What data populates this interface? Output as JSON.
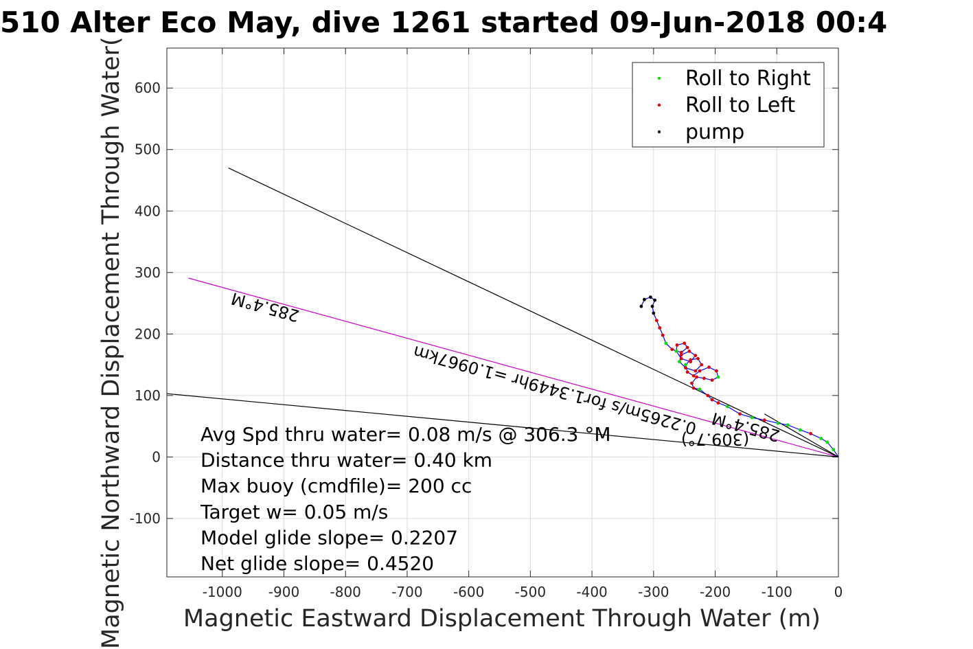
{
  "chart_data": {
    "type": "scatter",
    "title": "510 Alter Eco May, dive 1261 started 09-Jun-2018 00:4",
    "xlabel": "Magnetic Eastward Displacement Through Water (m)",
    "ylabel": "Magnetic Northward Displacement Through Water(",
    "xlim": [
      -1090,
      0
    ],
    "ylim": [
      -195,
      665
    ],
    "xticks": [
      -1000,
      -900,
      -800,
      -700,
      -600,
      -500,
      -400,
      -300,
      -200,
      -100,
      0
    ],
    "yticks": [
      -100,
      0,
      100,
      200,
      300,
      400,
      500,
      600
    ],
    "grid": true,
    "legend_position": "top-right",
    "colors": {
      "roll_right": "#00e000",
      "roll_left": "#e00000",
      "pump": "#000000",
      "track": "#0000ff",
      "heading_line": "#cc00cc",
      "ref_line": "#000000",
      "grid": "#dcdcdc"
    },
    "series": [
      {
        "name": "Roll to Right",
        "color": "#00e000",
        "marker": "dot"
      },
      {
        "name": "Roll to Left",
        "color": "#e00000",
        "marker": "dot"
      },
      {
        "name": "pump",
        "color": "#000000",
        "marker": "dot"
      }
    ],
    "track": {
      "color": "#0000ff",
      "points": [
        [
          0,
          0
        ],
        [
          -8,
          12
        ],
        [
          -18,
          24
        ],
        [
          -28,
          30
        ],
        [
          -45,
          38
        ],
        [
          -62,
          44
        ],
        [
          -82,
          52
        ],
        [
          -98,
          55
        ],
        [
          -120,
          60
        ],
        [
          -140,
          64
        ],
        [
          -160,
          70
        ],
        [
          -180,
          82
        ],
        [
          -195,
          88
        ],
        [
          -205,
          93
        ],
        [
          -212,
          100
        ],
        [
          -225,
          110
        ],
        [
          -235,
          112
        ],
        [
          -238,
          120
        ],
        [
          -230,
          130
        ],
        [
          -218,
          128
        ],
        [
          -205,
          125
        ],
        [
          -195,
          130
        ],
        [
          -198,
          140
        ],
        [
          -210,
          146
        ],
        [
          -225,
          140
        ],
        [
          -235,
          132
        ],
        [
          -245,
          138
        ],
        [
          -248,
          150
        ],
        [
          -240,
          158
        ],
        [
          -228,
          160
        ],
        [
          -222,
          150
        ],
        [
          -232,
          140
        ],
        [
          -248,
          145
        ],
        [
          -258,
          155
        ],
        [
          -255,
          166
        ],
        [
          -242,
          172
        ],
        [
          -232,
          165
        ],
        [
          -240,
          155
        ],
        [
          -255,
          160
        ],
        [
          -263,
          172
        ],
        [
          -262,
          182
        ],
        [
          -250,
          185
        ],
        [
          -245,
          178
        ],
        [
          -255,
          170
        ],
        [
          -270,
          175
        ],
        [
          -280,
          185
        ],
        [
          -285,
          198
        ],
        [
          -290,
          210
        ],
        [
          -295,
          222
        ],
        [
          -300,
          234
        ],
        [
          -302,
          245
        ],
        [
          -298,
          255
        ],
        [
          -305,
          260
        ],
        [
          -315,
          256
        ],
        [
          -320,
          245
        ]
      ]
    },
    "lines": [
      {
        "label": "285.4°M",
        "color": "#cc00cc",
        "x": [
          0,
          -1055
        ],
        "y": [
          0,
          291
        ]
      },
      {
        "label": "",
        "color": "#000000",
        "x": [
          0,
          -990
        ],
        "y": [
          0,
          470
        ]
      },
      {
        "label": "",
        "color": "#000000",
        "x": [
          0,
          -1090
        ],
        "y": [
          0,
          103
        ]
      },
      {
        "label": "",
        "color": "#000000",
        "x": [
          0,
          -120
        ],
        "y": [
          0,
          70
        ]
      }
    ],
    "annotations": [
      {
        "text": "285.4°M",
        "x": -930,
        "y": 245,
        "rotation_deg": 195.4
      },
      {
        "text": "0.2265m/s for1.3449hr =1.0967km",
        "x": -460,
        "y": 110,
        "rotation_deg": 195.4
      },
      {
        "text": "285.4°M",
        "x": -150,
        "y": 50,
        "rotation_deg": 195.4
      },
      {
        "text": "(309.7°)",
        "x": -200,
        "y": 30,
        "rotation_deg": 180
      }
    ],
    "stats": [
      "Avg Spd thru water=  0.08 m/s @ 306.3 °M",
      "Distance thru water=  0.40 km",
      "Max buoy (cmdfile)= 200 cc",
      "Target w= 0.05 m/s",
      "Model glide slope= 0.2207",
      "Net glide slope= 0.4520"
    ]
  }
}
